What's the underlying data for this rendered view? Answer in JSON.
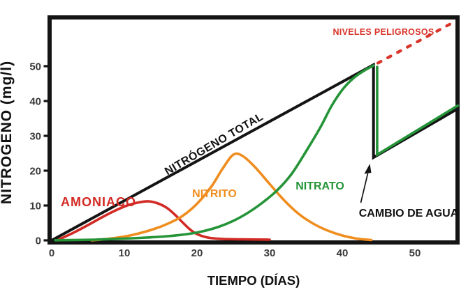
{
  "chart_data": {
    "type": "line",
    "title": "",
    "xlabel": "TIEMPO (DÍAS)",
    "ylabel": "NITRÓGENO (mg/l)",
    "xlim": [
      0,
      56
    ],
    "ylim": [
      0,
      64
    ],
    "x_ticks": [
      0,
      10,
      20,
      30,
      40,
      50
    ],
    "y_ticks": [
      0,
      10,
      20,
      30,
      40,
      50
    ],
    "grid": false,
    "legend": "labels-drawn-on-chart",
    "frame_color": "#141414",
    "tick_label_color": "#3a3a3a",
    "series": [
      {
        "id": "amoniaco",
        "name": "AMONIACO",
        "color": "#d22a24",
        "style": "smooth",
        "width": 3.6,
        "points": [
          [
            0.7,
            0
          ],
          [
            3,
            2.2
          ],
          [
            5,
            4.4
          ],
          [
            7,
            6.7
          ],
          [
            9,
            8.8
          ],
          [
            10.5,
            10.1
          ],
          [
            12,
            10.9
          ],
          [
            13.3,
            11.2
          ],
          [
            14.5,
            10.7
          ],
          [
            15.8,
            9.4
          ],
          [
            17,
            7.3
          ],
          [
            18,
            5.2
          ],
          [
            19,
            3.2
          ],
          [
            20,
            1.8
          ],
          [
            21.5,
            0.8
          ],
          [
            23.5,
            0.4
          ],
          [
            26,
            0.3
          ],
          [
            30,
            0.2
          ]
        ]
      },
      {
        "id": "nitrito",
        "name": "NITRITO",
        "color": "#ef8d1f",
        "style": "smooth",
        "width": 3.6,
        "points": [
          [
            5.5,
            0
          ],
          [
            8,
            0.5
          ],
          [
            11,
            1.5
          ],
          [
            14,
            3.2
          ],
          [
            16,
            4.8
          ],
          [
            18,
            7
          ],
          [
            20,
            10.5
          ],
          [
            22,
            15.5
          ],
          [
            23.5,
            20.5
          ],
          [
            25,
            24.6
          ],
          [
            26.3,
            24.2
          ],
          [
            28,
            21
          ],
          [
            30,
            16.2
          ],
          [
            32,
            11.5
          ],
          [
            34,
            7.6
          ],
          [
            36,
            4.8
          ],
          [
            38,
            2.8
          ],
          [
            40,
            1.4
          ],
          [
            42,
            0.5
          ],
          [
            44,
            0.1
          ]
        ]
      },
      {
        "id": "nitrogeno-total",
        "name": "NITRÓGENO TOTAL",
        "color": "#141414",
        "style": "straight",
        "width": 4,
        "points": [
          [
            0,
            0
          ],
          [
            44.3,
            50.4
          ],
          [
            44.3,
            23.8
          ],
          [
            55.9,
            37.8
          ]
        ]
      },
      {
        "id": "nitrato",
        "name": "NITRATO",
        "color": "#259438",
        "style": "smooth",
        "width": 3.6,
        "points": [
          [
            0.5,
            0.05
          ],
          [
            6,
            0.2
          ],
          [
            10,
            0.5
          ],
          [
            13,
            0.8
          ],
          [
            16,
            1.2
          ],
          [
            19,
            1.9
          ],
          [
            21,
            2.7
          ],
          [
            23,
            3.9
          ],
          [
            25,
            5.6
          ],
          [
            27,
            7.9
          ],
          [
            29,
            10.8
          ],
          [
            31,
            14.3
          ],
          [
            33,
            19
          ],
          [
            35,
            25.5
          ],
          [
            37,
            32.5
          ],
          [
            38.5,
            38.5
          ],
          [
            40,
            43.2
          ],
          [
            41.5,
            46.5
          ],
          [
            43,
            48.7
          ],
          [
            44.3,
            50.2
          ]
        ]
      },
      {
        "id": "nitrato-tras-cambio",
        "name": "NITRATO",
        "segment": "after-water-change",
        "color": "#259438",
        "style": "straight",
        "width": 3.6,
        "points": [
          [
            44.8,
            49.8
          ],
          [
            44.8,
            24.6
          ],
          [
            55.9,
            38.7
          ]
        ]
      },
      {
        "id": "niveles-peligrosos",
        "name": "NIVELES PELIGROSOS",
        "color": "#d8342a",
        "style": "straight",
        "dashed": true,
        "width": 4.2,
        "points": [
          [
            44.9,
            50.9
          ],
          [
            55.3,
            62.6
          ]
        ]
      }
    ],
    "annotations": [
      {
        "id": "cambio-de-agua",
        "label": "CAMBIO DE AGUA",
        "points_to": {
          "day": 44,
          "value": 24
        }
      }
    ]
  }
}
